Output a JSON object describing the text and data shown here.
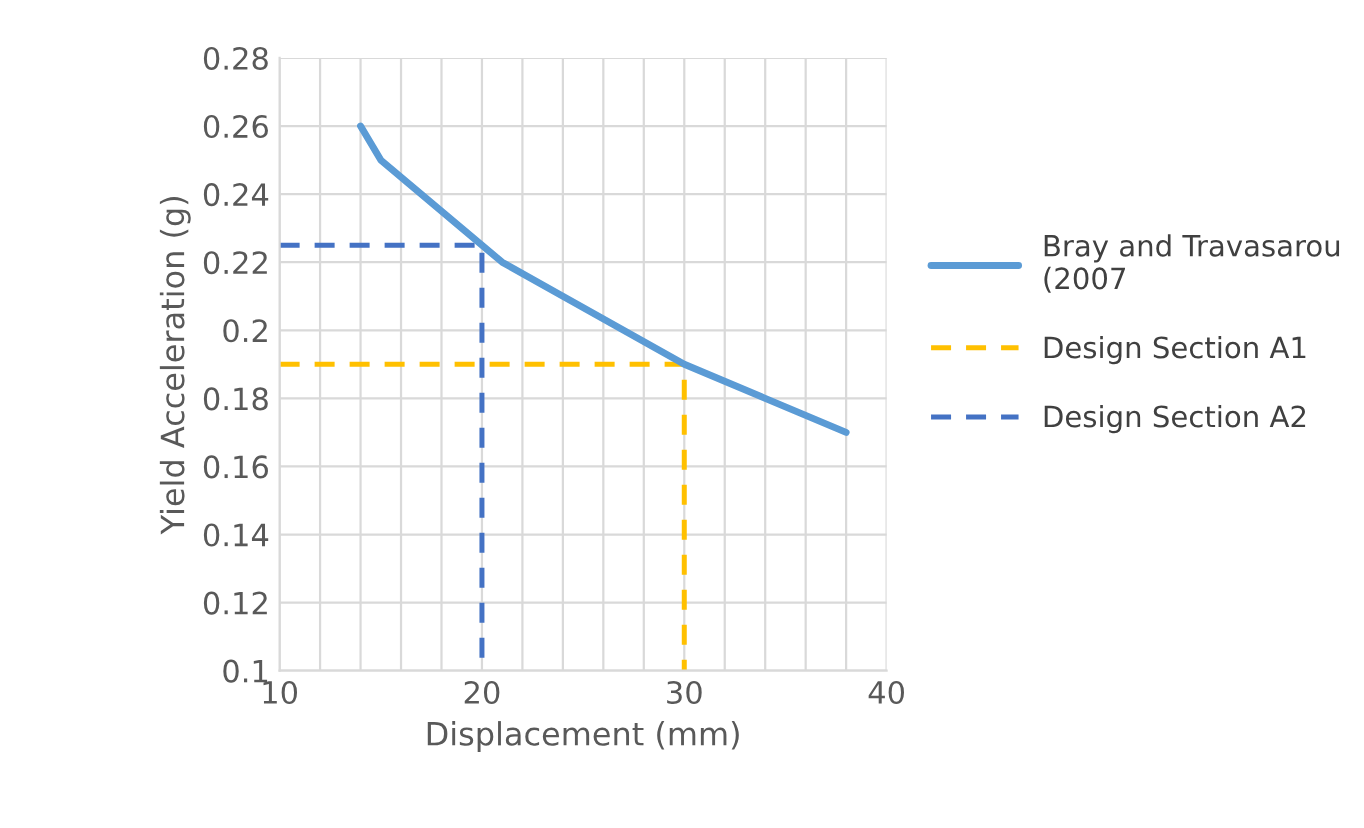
{
  "chart_data": {
    "type": "line",
    "xlabel": "Displacement (mm)",
    "ylabel": "Yield Acceleration (g)",
    "series": [
      {
        "name": "Bray and Travasarou (2007",
        "color": "#5b9bd5",
        "line_style": "solid",
        "x": [
          14,
          15,
          21,
          24,
          27,
          30,
          34,
          38
        ],
        "values": [
          0.26,
          0.25,
          0.22,
          0.21,
          0.2,
          0.19,
          0.18,
          0.17
        ]
      },
      {
        "name": "Design Section A1",
        "color": "#ffc000",
        "line_style": "dashed",
        "x": [
          10,
          30,
          30
        ],
        "values": [
          0.19,
          0.19,
          0.1
        ]
      },
      {
        "name": "Design Section A2",
        "color": "#4472c4",
        "line_style": "dashed",
        "x": [
          10,
          20,
          20
        ],
        "values": [
          0.225,
          0.225,
          0.1
        ]
      }
    ],
    "xlim": [
      10,
      40
    ],
    "ylim": [
      0.1,
      0.28
    ],
    "xticks": [
      10,
      {
        "value": 12,
        "label": null
      },
      {
        "value": 14,
        "label": null
      },
      {
        "value": 16,
        "label": null
      },
      {
        "value": 18,
        "label": null
      },
      20,
      {
        "value": 22,
        "label": null
      },
      {
        "value": 24,
        "label": null
      },
      {
        "value": 26,
        "label": null
      },
      {
        "value": 28,
        "label": null
      },
      30,
      {
        "value": 32,
        "label": null
      },
      {
        "value": 34,
        "label": null
      },
      {
        "value": 36,
        "label": null
      },
      {
        "value": 38,
        "label": null
      },
      40
    ],
    "yticks": [
      0.1,
      0.12,
      0.14,
      0.16,
      0.18,
      0.2,
      0.22,
      0.24,
      0.26,
      0.28
    ],
    "grid": true,
    "legend": "right",
    "marker": "none"
  }
}
